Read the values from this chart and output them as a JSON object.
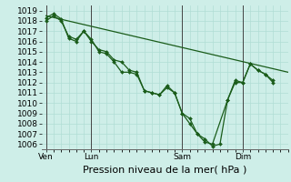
{
  "background_color": "#ceeee8",
  "grid_color": "#b0ddd5",
  "line_color": "#1a5c1a",
  "marker_color": "#1a5c1a",
  "ylim": [
    1005.5,
    1019.5
  ],
  "yticks": [
    1006,
    1007,
    1008,
    1009,
    1010,
    1011,
    1012,
    1013,
    1014,
    1015,
    1016,
    1017,
    1018,
    1019
  ],
  "xlabel": "Pression niveau de la mer( hPa )",
  "xlabel_fontsize": 8,
  "tick_fontsize": 6.5,
  "xtick_labels": [
    "Ven",
    "Lun",
    "Sam",
    "Dim"
  ],
  "xtick_positions": [
    0,
    48,
    144,
    208
  ],
  "vline_positions": [
    0,
    48,
    144,
    208
  ],
  "xlim": [
    -4,
    256
  ],
  "series1_x": [
    0,
    8,
    16,
    24,
    32,
    40,
    48,
    56,
    64,
    72,
    80,
    88,
    96,
    104,
    112,
    120,
    128,
    136,
    144,
    152,
    160,
    168,
    176,
    192,
    200,
    208,
    216,
    224,
    232,
    240
  ],
  "series1_y": [
    1018.3,
    1018.7,
    1018.2,
    1016.3,
    1016.0,
    1017.0,
    1016.0,
    1015.2,
    1015.0,
    1014.2,
    1014.0,
    1013.2,
    1013.0,
    1011.2,
    1011.0,
    1010.8,
    1011.5,
    1011.0,
    1009.0,
    1008.5,
    1007.0,
    1006.2,
    1006.0,
    1010.3,
    1012.2,
    1012.0,
    1013.8,
    1013.2,
    1012.8,
    1012.0
  ],
  "series2_x": [
    0,
    256
  ],
  "series2_y": [
    1018.5,
    1013.0
  ],
  "series3_x": [
    0,
    8,
    16,
    24,
    32,
    40,
    48,
    56,
    64,
    72,
    80,
    88,
    96,
    104,
    112,
    120,
    128,
    136,
    144,
    152,
    160,
    168,
    176,
    184,
    192,
    200,
    208,
    216,
    224,
    232,
    240
  ],
  "series3_y": [
    1018.0,
    1018.5,
    1018.0,
    1016.5,
    1016.2,
    1017.0,
    1016.2,
    1015.0,
    1014.8,
    1014.0,
    1013.0,
    1013.0,
    1012.8,
    1011.2,
    1011.0,
    1010.8,
    1011.7,
    1011.0,
    1009.0,
    1008.0,
    1007.0,
    1006.5,
    1005.8,
    1006.0,
    1010.3,
    1012.0,
    1012.0,
    1013.8,
    1013.2,
    1012.8,
    1012.2
  ]
}
